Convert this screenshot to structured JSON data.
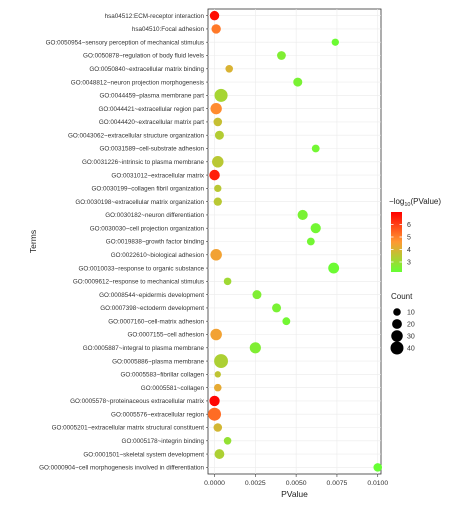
{
  "chart_data": {
    "type": "scatter",
    "title": "",
    "xlabel": "PValue",
    "ylabel": "Terms",
    "xlim": [
      -0.0004,
      0.0102
    ],
    "x_ticks": [
      0.0,
      0.0025,
      0.005,
      0.0075,
      0.01
    ],
    "x_tick_labels": [
      "0.0000",
      "0.0025",
      "0.0050",
      "0.0075",
      "0.0100"
    ],
    "grid": true,
    "color_scale": {
      "title_prefix": "−log",
      "title_sub": "10",
      "title_suffix": "(PValue)",
      "min": 2.2,
      "max": 7.0,
      "ticks": [
        3,
        4,
        5,
        6
      ],
      "tick_labels": [
        "3",
        "4",
        "5",
        "6"
      ],
      "low_color": "#66ff33",
      "high_color": "#ff0000",
      "position": "right"
    },
    "size_scale": {
      "title": "Count",
      "values": [
        10,
        20,
        30,
        40
      ],
      "labels": [
        "10",
        "20",
        "30",
        "40"
      ],
      "position": "right"
    },
    "terms": [
      {
        "term": "hsa04512:ECM-receptor interaction",
        "p": 0.0,
        "count": 18,
        "log_p": 6.8
      },
      {
        "term": "hsa04510:Focal adhesion",
        "p": 0.0001,
        "count": 18,
        "log_p": 5.1
      },
      {
        "term": "GO:0050954~sensory perception of mechanical stimulus",
        "p": 0.0074,
        "count": 9,
        "log_p": 2.3
      },
      {
        "term": "GO:0050878~regulation of body fluid levels",
        "p": 0.0041,
        "count": 15,
        "log_p": 2.6
      },
      {
        "term": "GO:0050840~extracellular matrix binding",
        "p": 0.0009,
        "count": 10,
        "log_p": 4.0
      },
      {
        "term": "GO:0048812~neuron projection morphogenesis",
        "p": 0.0051,
        "count": 16,
        "log_p": 2.5
      },
      {
        "term": "GO:0044459~plasma membrane part",
        "p": 0.0004,
        "count": 41,
        "log_p": 3.2
      },
      {
        "term": "GO:0044421~extracellular region part",
        "p": 0.0001,
        "count": 29,
        "log_p": 4.8
      },
      {
        "term": "GO:0044420~extracellular matrix part",
        "p": 0.0002,
        "count": 14,
        "log_p": 3.7
      },
      {
        "term": "GO:0043062~extracellular structure organization",
        "p": 0.0003,
        "count": 16,
        "log_p": 3.4
      },
      {
        "term": "GO:0031589~cell-substrate adhesion",
        "p": 0.0062,
        "count": 11,
        "log_p": 2.4
      },
      {
        "term": "GO:0031226~intrinsic to plasma membrane",
        "p": 0.0002,
        "count": 30,
        "log_p": 3.5
      },
      {
        "term": "GO:0031012~extracellular matrix",
        "p": 0.0,
        "count": 24,
        "log_p": 6.5
      },
      {
        "term": "GO:0030199~collagen fibril organization",
        "p": 0.0002,
        "count": 9,
        "log_p": 3.5
      },
      {
        "term": "GO:0030198~extracellular matrix organization",
        "p": 0.0002,
        "count": 13,
        "log_p": 3.5
      },
      {
        "term": "GO:0030182~neuron differentiation",
        "p": 0.0054,
        "count": 22,
        "log_p": 2.5
      },
      {
        "term": "GO:0030030~cell projection organization",
        "p": 0.0062,
        "count": 22,
        "log_p": 2.4
      },
      {
        "term": "GO:0019838~growth factor binding",
        "p": 0.0059,
        "count": 11,
        "log_p": 2.4
      },
      {
        "term": "GO:0022610~biological adhesion",
        "p": 0.0001,
        "count": 30,
        "log_p": 4.4
      },
      {
        "term": "GO:0010033~response to organic substance",
        "p": 0.0073,
        "count": 26,
        "log_p": 2.3
      },
      {
        "term": "GO:0009612~response to mechanical stimulus",
        "p": 0.0008,
        "count": 10,
        "log_p": 3.1
      },
      {
        "term": "GO:0008544~epidermis development",
        "p": 0.0026,
        "count": 16,
        "log_p": 2.6
      },
      {
        "term": "GO:0007398~ectoderm development",
        "p": 0.0038,
        "count": 16,
        "log_p": 2.5
      },
      {
        "term": "GO:0007160~cell-matrix adhesion",
        "p": 0.0044,
        "count": 11,
        "log_p": 2.4
      },
      {
        "term": "GO:0007155~cell adhesion",
        "p": 0.0001,
        "count": 30,
        "log_p": 4.4
      },
      {
        "term": "GO:0005887~integral to plasma membrane",
        "p": 0.0025,
        "count": 28,
        "log_p": 2.6
      },
      {
        "term": "GO:0005886~plasma membrane",
        "p": 0.0004,
        "count": 47,
        "log_p": 3.3
      },
      {
        "term": "GO:0005583~fibrillar collagen",
        "p": 0.0002,
        "count": 6,
        "log_p": 3.6
      },
      {
        "term": "GO:0005581~collagen",
        "p": 0.0002,
        "count": 10,
        "log_p": 4.2
      },
      {
        "term": "GO:0005578~proteinaceous extracellular matrix",
        "p": 0.0,
        "count": 23,
        "log_p": 6.9
      },
      {
        "term": "GO:0005576~extracellular region",
        "p": 0.0,
        "count": 40,
        "log_p": 5.3
      },
      {
        "term": "GO:0005201~extracellular matrix structural constituent",
        "p": 0.0002,
        "count": 14,
        "log_p": 3.9
      },
      {
        "term": "GO:0005178~integrin binding",
        "p": 0.0008,
        "count": 10,
        "log_p": 2.9
      },
      {
        "term": "GO:0001501~skeletal system development",
        "p": 0.0003,
        "count": 20,
        "log_p": 3.3
      },
      {
        "term": "GO:0000904~cell morphogenesis involved in differentiation",
        "p": 0.01,
        "count": 14,
        "log_p": 2.2
      }
    ]
  }
}
